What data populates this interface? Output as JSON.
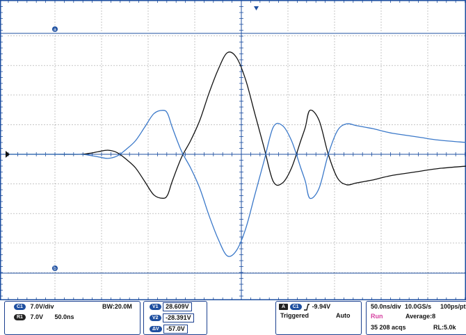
{
  "colors": {
    "grid": "#1e4fa0",
    "waveform_ch1": "#111111",
    "waveform_ref": "#3a78c9",
    "accent": "#1e4fa0",
    "run_status": "#d63fa0"
  },
  "cursor_labels": {
    "a": "a",
    "b": "b"
  },
  "channel_panel": {
    "c1_badge": "C1",
    "c1_scale": "7.0V/div",
    "bandwidth": "BW:20.0M",
    "r1_badge": "R1",
    "r1_scale": "7.0V",
    "r1_time": "50.0ns"
  },
  "cursor_panel": {
    "v1_label": "V1",
    "v1_value": "28.609V",
    "v2_label": "V2",
    "v2_value": "-28.391V",
    "dv_label": "ΔV",
    "dv_value": "-57.0V"
  },
  "trigger_panel": {
    "source_badge": "A",
    "channel_badge": "C1",
    "slope_icon": "rising-edge-icon",
    "level": "-9.94V",
    "status": "Triggered",
    "mode": "Auto"
  },
  "acq_panel": {
    "timebase": "50.0ns/div",
    "sample_rate": "10.0GS/s",
    "resolution": "100ps/pt",
    "run_state": "Run",
    "average": "Average:8",
    "acqs": "35 208 acqs",
    "record_length": "RL:5.0k"
  },
  "chart_data": {
    "type": "line",
    "xlim": [
      -250,
      250
    ],
    "ylim": [
      -35,
      35
    ],
    "series": [
      {
        "x": [
          -250,
          -200,
          -170,
          -160,
          -150,
          -140,
          -130,
          -120,
          -110,
          -100,
          -90,
          -80,
          -75,
          -70,
          -60,
          -50,
          -40,
          -30,
          -20,
          -10,
          0,
          10,
          20,
          30,
          40,
          50,
          60,
          70,
          75,
          80,
          90,
          100,
          110,
          120,
          130,
          140,
          150,
          160,
          170,
          180,
          200,
          220,
          250
        ],
        "y": [
          0,
          0,
          0,
          0.3,
          0.8,
          1.2,
          0.5,
          -1.5,
          -4,
          -8,
          -12,
          -13,
          -12,
          -8,
          -1,
          4,
          10,
          18,
          25,
          30,
          28.6,
          22,
          12,
          2,
          -8,
          -8.5,
          -4,
          4,
          8,
          13,
          10,
          0,
          -7,
          -9,
          -8.5,
          -8,
          -7.5,
          -6.8,
          -6.2,
          -5.8,
          -5,
          -4.2,
          -3.5
        ]
      },
      {
        "x": [
          -250,
          -200,
          -170,
          -160,
          -150,
          -140,
          -130,
          -120,
          -110,
          -100,
          -90,
          -80,
          -75,
          -70,
          -60,
          -50,
          -40,
          -30,
          -20,
          -10,
          0,
          10,
          20,
          30,
          40,
          50,
          60,
          70,
          75,
          80,
          90,
          100,
          110,
          120,
          130,
          140,
          150,
          160,
          170,
          180,
          200,
          220,
          250
        ],
        "y": [
          0,
          0,
          0,
          -0.3,
          -0.8,
          -1.2,
          -0.5,
          1.5,
          4,
          8,
          12,
          13,
          12,
          8,
          1,
          -4,
          -10,
          -18,
          -25,
          -30,
          -28.4,
          -22,
          -12,
          -2,
          8,
          8.5,
          4,
          -4,
          -8,
          -13,
          -10,
          0,
          7,
          9,
          8.5,
          8,
          7.5,
          6.8,
          6.2,
          5.8,
          5,
          4.2,
          3.5
        ]
      }
    ]
  }
}
